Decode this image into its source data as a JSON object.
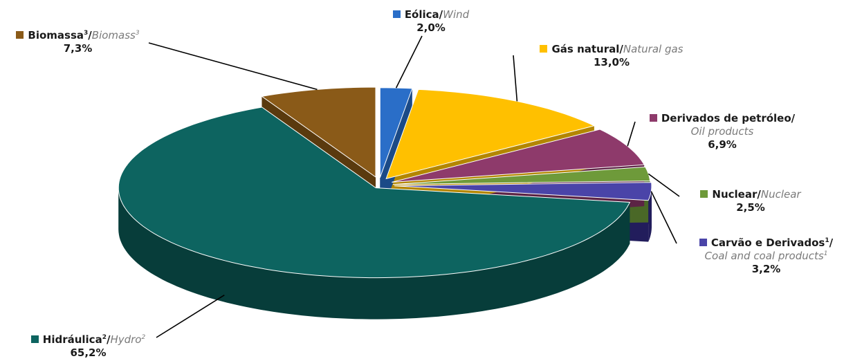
{
  "chart_data": {
    "type": "pie",
    "style": "3d-exploded",
    "title": "",
    "slices": [
      {
        "pt": "Eólica",
        "en": "Wind",
        "sup": "",
        "value": 2.0,
        "label": "2,0%",
        "color": "#2a6ec8",
        "side": "#1b4a87"
      },
      {
        "pt": "Gás natural",
        "en": "Natural gas",
        "sup": "",
        "value": 13.0,
        "label": "13,0%",
        "color": "#ffc000",
        "side": "#b38600"
      },
      {
        "pt": "Derivados de petróleo",
        "en": "Oil products",
        "sup": "",
        "value": 6.9,
        "label": "6,9%",
        "color": "#8e3a6b",
        "side": "#5c2445"
      },
      {
        "pt": "Nuclear",
        "en": "Nuclear",
        "sup": "",
        "value": 2.5,
        "label": "2,5%",
        "color": "#6e9a3a",
        "side": "#4a6827"
      },
      {
        "pt": "Carvão e Derivados",
        "en": "Coal and coal products",
        "sup": "1",
        "value": 3.2,
        "label": "3,2%",
        "color": "#4a44a8",
        "side": "#221d5c"
      },
      {
        "pt": "Hidráulica",
        "en": "Hydro",
        "sup": "2",
        "value": 65.2,
        "label": "65,2%",
        "color": "#0d6460",
        "side": "#073d3a"
      },
      {
        "pt": "Biomassa",
        "en": "Biomass",
        "sup": "3",
        "value": 7.3,
        "label": "7,3%",
        "color": "#8a5a18",
        "side": "#5a3a0e"
      }
    ]
  }
}
